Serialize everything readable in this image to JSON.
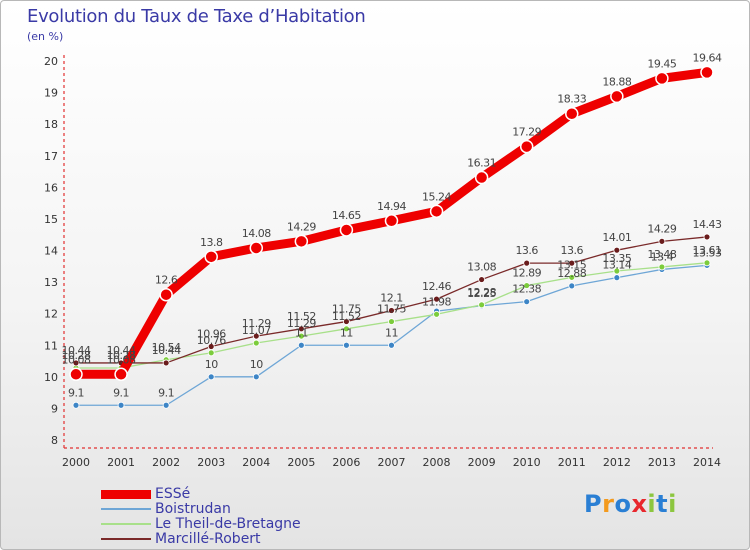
{
  "title": "Evolution du Taux de Taxe d’Habitation",
  "unit_label": "(en %)",
  "brand": {
    "letters": [
      "P",
      "r",
      "o",
      "x",
      "i",
      "t",
      "i"
    ],
    "colors": [
      "#2a7fd4",
      "#f39a1e",
      "#2a7fd4",
      "#e8272d",
      "#8cc63f",
      "#2a7fd4",
      "#8cc63f"
    ]
  },
  "chart_data": {
    "type": "line",
    "title": "Evolution du Taux de Taxe d’Habitation",
    "ylabel": "(en %)",
    "xlabel": "",
    "categories": [
      "2000",
      "2001",
      "2002",
      "2003",
      "2004",
      "2005",
      "2006",
      "2007",
      "2008",
      "2009",
      "2010",
      "2011",
      "2012",
      "2013",
      "2014"
    ],
    "ylim": [
      8,
      20
    ],
    "yticks": [
      8,
      9,
      10,
      11,
      12,
      13,
      14,
      15,
      16,
      17,
      18,
      19,
      20
    ],
    "grid": false,
    "legend_position": "bottom-left",
    "series": [
      {
        "name": "ESSé",
        "color": "#ee0000",
        "width": 9,
        "marker_radius": 6,
        "marker_color": "#ee0000",
        "values": [
          10.08,
          10.08,
          12.6,
          13.8,
          14.08,
          14.29,
          14.65,
          14.94,
          15.24,
          16.31,
          17.29,
          18.33,
          18.88,
          19.45,
          19.64
        ],
        "labels": [
          "10.08",
          "10.08",
          "12.6",
          "13.8",
          "14.08",
          "14.29",
          "14.65",
          "14.94",
          "15.24",
          "16.31",
          "17.29",
          "18.33",
          "18.88",
          "19.45",
          "19.64"
        ]
      },
      {
        "name": "Boistrudan",
        "color": "#6ea6d6",
        "width": 1.3,
        "marker_radius": 3,
        "marker_color": "#3d85c6",
        "values": [
          9.1,
          9.1,
          9.1,
          10,
          10,
          11,
          11,
          11,
          12.08,
          12.25,
          12.38,
          12.88,
          13.14,
          13.4,
          13.53
        ],
        "labels": [
          "9.1",
          "9.1",
          "9.1",
          "10",
          "10",
          "11",
          "11",
          "11",
          "",
          "12.25",
          "12.38",
          "12.88",
          "13.14",
          "13.4",
          "13.53"
        ]
      },
      {
        "name": "Le Theil-de-Bretagne",
        "color": "#a8e08a",
        "width": 1.3,
        "marker_radius": 3,
        "marker_color": "#7ccc3c",
        "values": [
          10.28,
          10.28,
          10.54,
          10.76,
          11.07,
          11.29,
          11.52,
          11.75,
          11.98,
          12.28,
          12.89,
          13.15,
          13.35,
          13.48,
          13.61
        ],
        "labels": [
          "10.28",
          "10.28",
          "10.54",
          "10.76",
          "11.07",
          "11.29",
          "11.52",
          "11.75",
          "11.98",
          "12.28",
          "12.89",
          "13.15",
          "13.35",
          "13.48",
          "13.61"
        ]
      },
      {
        "name": "Marcillé-Robert",
        "color": "#7a2a2a",
        "width": 1.3,
        "marker_radius": 3,
        "marker_color": "#6a1c1c",
        "values": [
          10.44,
          10.44,
          10.44,
          10.96,
          11.29,
          11.52,
          11.75,
          12.1,
          12.46,
          13.08,
          13.6,
          13.6,
          14.01,
          14.29,
          14.43
        ],
        "labels": [
          "10.44",
          "10.44",
          "10.44",
          "10.96",
          "11.29",
          "11.52",
          "11.75",
          "12.1",
          "12.46",
          "13.08",
          "13.6",
          "13.6",
          "14.01",
          "14.29",
          "14.43"
        ]
      }
    ]
  }
}
